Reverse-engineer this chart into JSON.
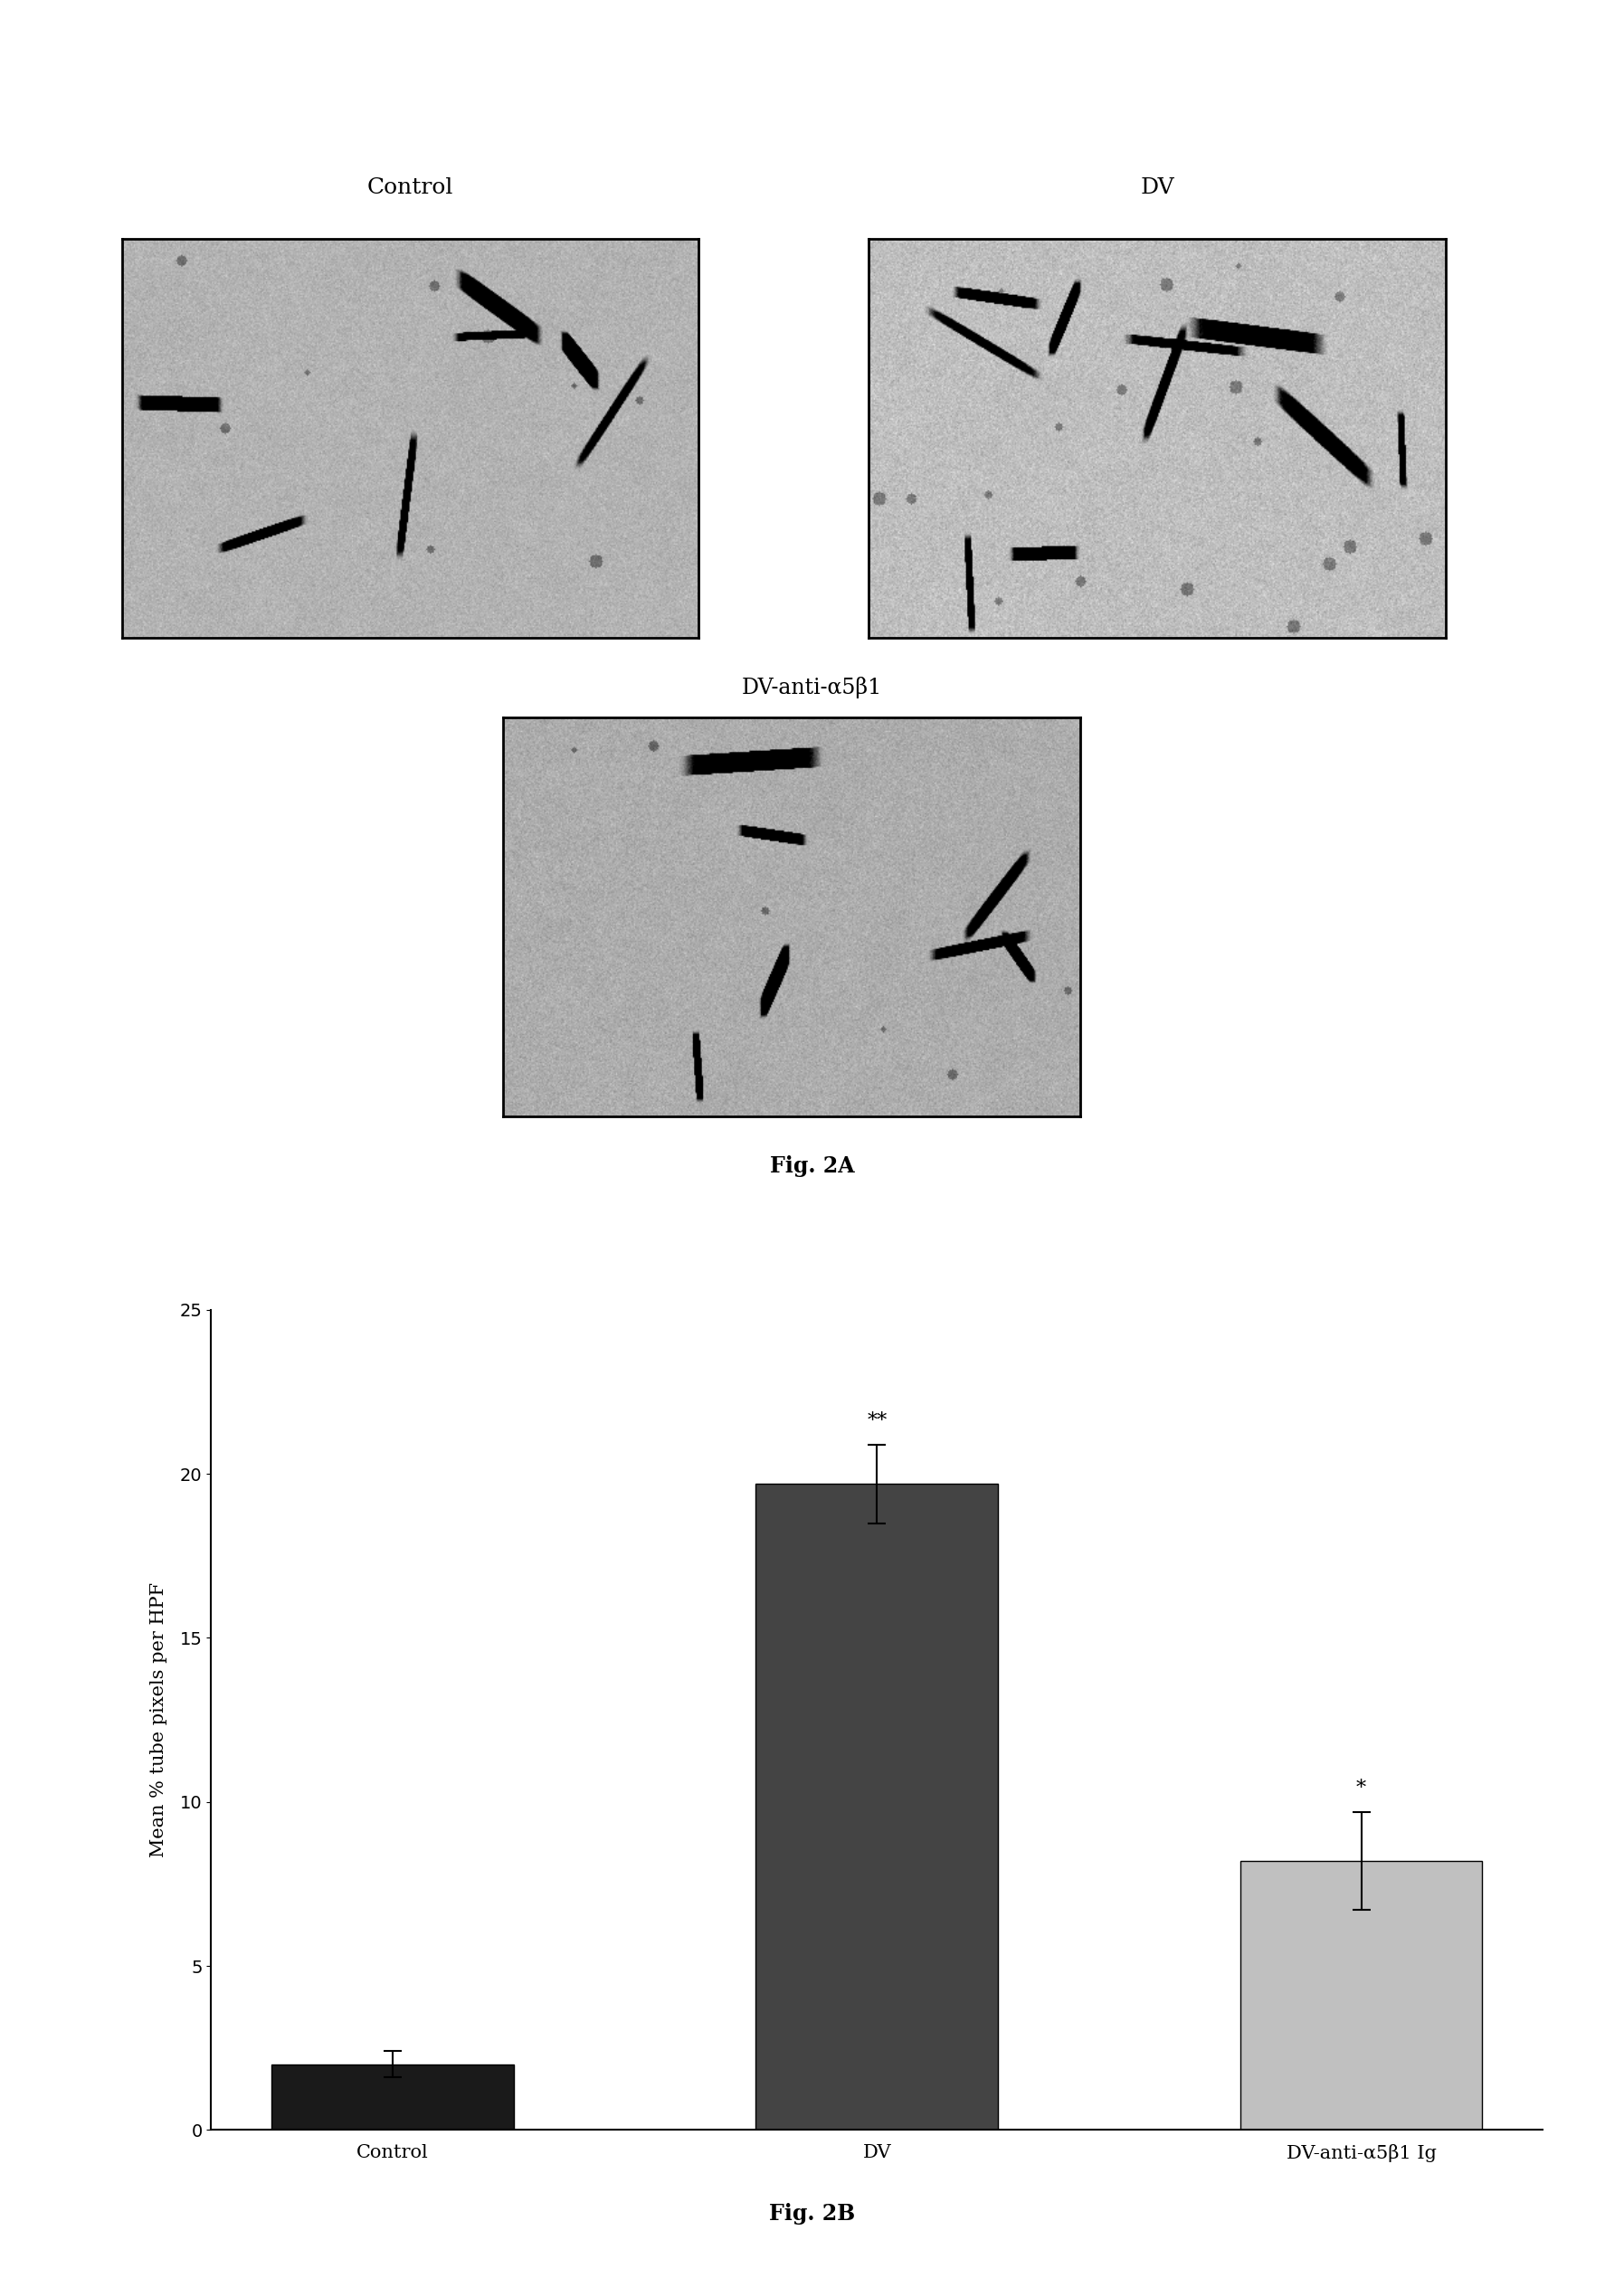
{
  "fig2a_label": "Fig. 2A",
  "fig2b_label": "Fig. 2B",
  "panel_labels": {
    "top_left": "Control",
    "top_right": "DV",
    "bottom_center": "DV-anti-α5β1"
  },
  "bar_categories": [
    "Control",
    "DV",
    "DV-anti-α5β1 Ig"
  ],
  "bar_values": [
    2.0,
    19.7,
    8.2
  ],
  "bar_errors": [
    0.4,
    1.2,
    1.5
  ],
  "bar_colors": [
    "#1a1a1a",
    "#444444",
    "#c0c0c0"
  ],
  "bar_edge_colors": [
    "#000000",
    "#000000",
    "#000000"
  ],
  "significance_labels": [
    "",
    "**",
    "*"
  ],
  "ylabel": "Mean % tube pixels per HPF",
  "ylim": [
    0,
    25
  ],
  "yticks": [
    0,
    5,
    10,
    15,
    20,
    25
  ],
  "background_color": "#ffffff",
  "bar_label_fontsize": 15,
  "ylabel_fontsize": 15,
  "tick_fontsize": 14,
  "sig_fontsize": 16,
  "panel_label_fontsize": 18,
  "caption_fontsize": 17
}
